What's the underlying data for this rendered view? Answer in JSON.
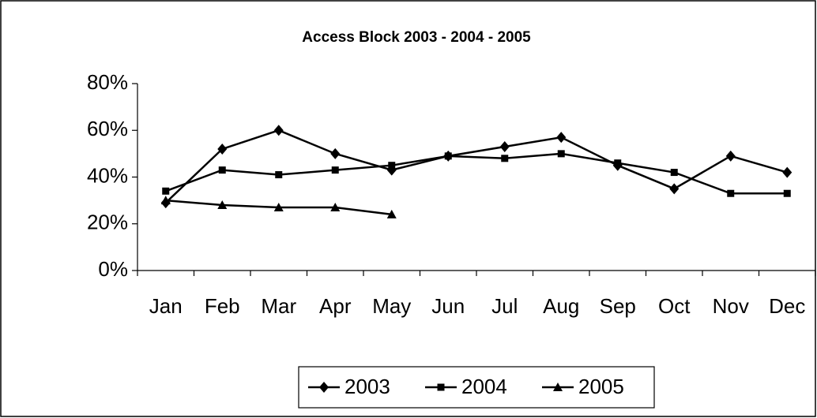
{
  "chart_data": {
    "type": "line",
    "title": "Access Block 2003 - 2004 - 2005",
    "categories": [
      "Jan",
      "Feb",
      "Mar",
      "Apr",
      "May",
      "Jun",
      "Jul",
      "Aug",
      "Sep",
      "Oct",
      "Nov",
      "Dec"
    ],
    "series": [
      {
        "name": "2003",
        "color": "#000000",
        "marker": "diamond",
        "values": [
          29,
          52,
          60,
          50,
          43,
          49,
          53,
          57,
          45,
          35,
          49,
          42
        ]
      },
      {
        "name": "2004",
        "color": "#000000",
        "marker": "square",
        "values": [
          34,
          43,
          41,
          43,
          45,
          49,
          48,
          50,
          46,
          42,
          33,
          33
        ]
      },
      {
        "name": "2005",
        "color": "#000000",
        "marker": "triangle",
        "values": [
          30,
          28,
          27,
          27,
          24,
          null,
          null,
          null,
          null,
          null,
          null,
          null
        ]
      }
    ],
    "ylim": [
      0,
      80
    ],
    "yticks": [
      {
        "value": 0,
        "label": "0%"
      },
      {
        "value": 20,
        "label": "20%"
      },
      {
        "value": 40,
        "label": "40%"
      },
      {
        "value": 60,
        "label": "60%"
      },
      {
        "value": 80,
        "label": "80%"
      }
    ],
    "legend": "bottom"
  }
}
